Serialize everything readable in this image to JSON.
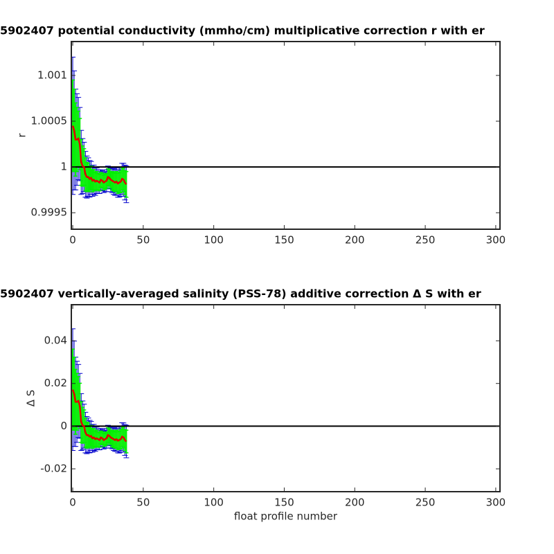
{
  "chart_data": [
    {
      "type": "errorbar",
      "title": "5902407 potential conductivity (mmho/cm) multiplicative correction r with er",
      "ylabel": "r",
      "x": [
        0,
        1,
        2,
        3,
        4,
        5,
        6,
        7,
        8,
        9,
        10,
        11,
        12,
        13,
        14,
        15,
        16,
        17,
        18,
        19,
        20,
        21,
        22,
        23,
        24,
        25,
        26,
        27,
        28,
        29,
        30,
        31,
        32,
        33,
        34,
        35,
        36,
        37,
        38
      ],
      "values": [
        1.00045,
        1.0004,
        1.0003,
        1.0003,
        1.00031,
        1.00025,
        1.00005,
        1.00001,
        1.0,
        0.99992,
        0.99989,
        0.99989,
        0.99987,
        0.99988,
        0.99985,
        0.99986,
        0.99984,
        0.99985,
        0.99984,
        0.99983,
        0.99986,
        0.99985,
        0.99983,
        0.99984,
        0.99985,
        0.99989,
        0.99988,
        0.99986,
        0.99985,
        0.99984,
        0.99983,
        0.99984,
        0.99982,
        0.99983,
        0.99984,
        0.99987,
        0.99986,
        0.99983,
        0.99981
      ],
      "errors": [
        0.00075,
        0.00065,
        0.00055,
        0.0005,
        0.00045,
        0.0004,
        0.00035,
        0.0003,
        0.00027,
        0.00025,
        0.00023,
        0.00021,
        0.0002,
        0.00018,
        0.00017,
        0.00016,
        0.00015,
        0.00014,
        0.00013,
        0.00012,
        0.00011,
        0.00011,
        0.00011,
        0.00011,
        0.00012,
        0.00012,
        0.00012,
        0.00013,
        0.00013,
        0.00014,
        0.00014,
        0.00015,
        0.00015,
        0.00016,
        0.00016,
        0.00017,
        0.00018,
        0.00019,
        0.0002
      ],
      "errors2": [
        0.0005,
        0.00045,
        0.0004,
        0.00035,
        0.0003,
        0.00028,
        0.00025,
        0.00022,
        0.0002,
        0.00018,
        0.00016,
        0.00015,
        0.00014,
        0.00013,
        0.00012,
        0.00011,
        0.0001,
        0.0001,
        9e-05,
        9e-05,
        8e-05,
        8e-05,
        8e-05,
        8e-05,
        8e-05,
        9e-05,
        9e-05,
        9e-05,
        0.0001,
        0.0001,
        0.0001,
        0.00011,
        0.00011,
        0.00011,
        0.00012,
        0.00012,
        0.00013,
        0.00013,
        0.00014
      ],
      "line_color": "#e00000",
      "error_color": "#0000cc",
      "error2_color": "#00ee00",
      "hline": 1,
      "xlim": [
        -1,
        303
      ],
      "xticks": [
        0,
        50,
        100,
        150,
        200,
        250,
        300
      ],
      "ylim": [
        0.99932,
        1.00137
      ],
      "yticks": [
        0.9995,
        1,
        1.0005,
        1.001
      ]
    },
    {
      "type": "errorbar",
      "title": "5902407 vertically-averaged salinity (PSS-78) additive correction Δ S with er",
      "ylabel": "Δ S",
      "xlabel": "float profile number",
      "x": [
        0,
        1,
        2,
        3,
        4,
        5,
        6,
        7,
        8,
        9,
        10,
        11,
        12,
        13,
        14,
        15,
        16,
        17,
        18,
        19,
        20,
        21,
        22,
        23,
        24,
        25,
        26,
        27,
        28,
        29,
        30,
        31,
        32,
        33,
        34,
        35,
        36,
        37,
        38
      ],
      "values": [
        0.0171,
        0.0152,
        0.0114,
        0.0114,
        0.0118,
        0.0095,
        0.0019,
        0.0004,
        0,
        -0.003,
        -0.0042,
        -0.0042,
        -0.0049,
        -0.0046,
        -0.0057,
        -0.0053,
        -0.0061,
        -0.0057,
        -0.0061,
        -0.0065,
        -0.0053,
        -0.0057,
        -0.0065,
        -0.0061,
        -0.0057,
        -0.0042,
        -0.0046,
        -0.0053,
        -0.0057,
        -0.0061,
        -0.0065,
        -0.0061,
        -0.0068,
        -0.0065,
        -0.0061,
        -0.0049,
        -0.0053,
        -0.0065,
        -0.0072
      ],
      "errors": [
        0.0285,
        0.0247,
        0.0209,
        0.019,
        0.0171,
        0.0152,
        0.0133,
        0.0114,
        0.0103,
        0.0095,
        0.0087,
        0.008,
        0.0076,
        0.0068,
        0.0065,
        0.0061,
        0.0057,
        0.0053,
        0.0049,
        0.0046,
        0.0042,
        0.0042,
        0.0042,
        0.0042,
        0.0046,
        0.0046,
        0.0046,
        0.0049,
        0.0049,
        0.0053,
        0.0053,
        0.0057,
        0.0057,
        0.0061,
        0.0061,
        0.0065,
        0.0068,
        0.0072,
        0.0076
      ],
      "errors2": [
        0.019,
        0.0171,
        0.0152,
        0.0133,
        0.0114,
        0.0106,
        0.0095,
        0.0084,
        0.0076,
        0.0068,
        0.0061,
        0.0057,
        0.0053,
        0.0049,
        0.0046,
        0.0042,
        0.0038,
        0.0038,
        0.0034,
        0.0034,
        0.003,
        0.003,
        0.003,
        0.003,
        0.003,
        0.0034,
        0.0034,
        0.0034,
        0.0038,
        0.0038,
        0.0038,
        0.0042,
        0.0042,
        0.0042,
        0.0046,
        0.0046,
        0.0049,
        0.0049,
        0.0053
      ],
      "line_color": "#e00000",
      "error_color": "#0000cc",
      "error2_color": "#00ee00",
      "hline": 0,
      "xlim": [
        -1,
        303
      ],
      "xticks": [
        0,
        50,
        100,
        150,
        200,
        250,
        300
      ],
      "ylim": [
        -0.0307,
        0.0569
      ],
      "yticks": [
        -0.02,
        0,
        0.02,
        0.04
      ]
    }
  ]
}
